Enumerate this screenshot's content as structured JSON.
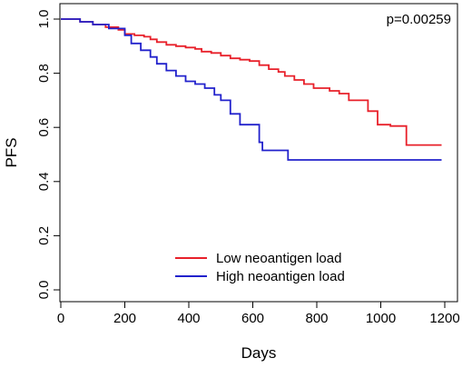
{
  "chart_data": {
    "type": "line",
    "title": "",
    "xlabel": "Days",
    "ylabel": "PFS",
    "xlim": [
      0,
      1200
    ],
    "ylim": [
      0,
      1
    ],
    "x_ticks": [
      0,
      200,
      400,
      600,
      800,
      1000,
      1200
    ],
    "x_tick_labels": [
      "0",
      "200",
      "400",
      "600",
      "800",
      "1000",
      "1200"
    ],
    "y_ticks": [
      0,
      0.2,
      0.4,
      0.6,
      0.8,
      1
    ],
    "y_tick_labels": [
      "0.0",
      "0.2",
      "0.4",
      "0.6",
      "0.8",
      "1.0"
    ],
    "grid": false,
    "legend_position": "bottom-center",
    "annotation": "p=0.00259",
    "series": [
      {
        "name": "Low neoantigen load",
        "color": "#e8202a",
        "x": [
          0,
          60,
          100,
          140,
          180,
          200,
          230,
          260,
          280,
          300,
          330,
          360,
          390,
          420,
          440,
          470,
          500,
          530,
          560,
          590,
          620,
          650,
          680,
          700,
          730,
          760,
          790,
          810,
          840,
          870,
          900,
          930,
          960,
          990,
          1030,
          1070,
          1080,
          1110,
          1190
        ],
        "y": [
          1.0,
          0.99,
          0.98,
          0.97,
          0.96,
          0.945,
          0.94,
          0.935,
          0.925,
          0.915,
          0.905,
          0.9,
          0.895,
          0.89,
          0.88,
          0.875,
          0.865,
          0.855,
          0.85,
          0.845,
          0.83,
          0.815,
          0.805,
          0.79,
          0.775,
          0.76,
          0.745,
          0.745,
          0.735,
          0.725,
          0.7,
          0.7,
          0.66,
          0.61,
          0.605,
          0.605,
          0.535,
          0.535,
          0.535
        ]
      },
      {
        "name": "High neoantigen load",
        "color": "#2222cc",
        "x": [
          0,
          60,
          100,
          150,
          200,
          220,
          250,
          280,
          300,
          330,
          360,
          390,
          420,
          450,
          480,
          500,
          530,
          560,
          600,
          620,
          630,
          680,
          710,
          1190
        ],
        "y": [
          1.0,
          0.99,
          0.98,
          0.965,
          0.94,
          0.91,
          0.885,
          0.86,
          0.835,
          0.81,
          0.79,
          0.77,
          0.76,
          0.745,
          0.72,
          0.7,
          0.65,
          0.61,
          0.61,
          0.545,
          0.515,
          0.515,
          0.48,
          0.48
        ]
      }
    ]
  }
}
